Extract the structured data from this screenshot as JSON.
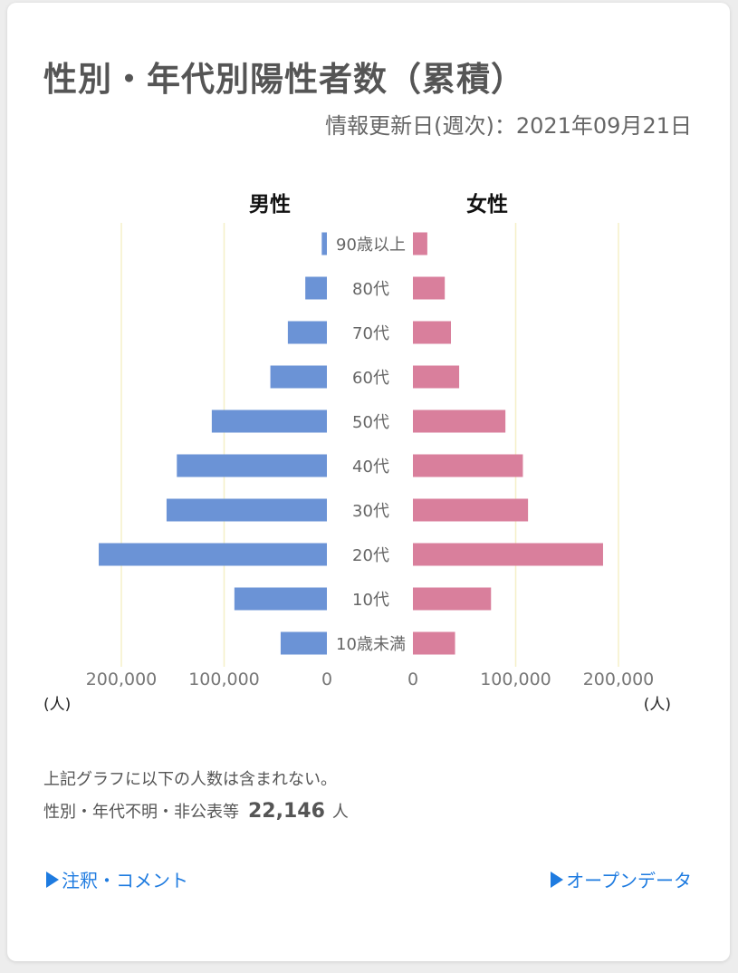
{
  "header": {
    "title": "性別・年代別陽性者数（累積）",
    "updated": "情報更新日(週次)：2021年09月21日"
  },
  "chart_data": {
    "type": "bar",
    "orientation": "horizontal-pyramid",
    "categories": [
      "90歳以上",
      "80代",
      "70代",
      "60代",
      "50代",
      "40代",
      "30代",
      "20代",
      "10代",
      "10歳未満"
    ],
    "series": [
      {
        "name": "男性",
        "side": "left",
        "color": "#6b93d6",
        "values": [
          5000,
          21000,
          38000,
          55000,
          112000,
          146000,
          156000,
          222000,
          90000,
          45000
        ]
      },
      {
        "name": "女性",
        "side": "right",
        "color": "#d97f9c",
        "values": [
          14000,
          31000,
          37000,
          45000,
          90000,
          107000,
          112000,
          185000,
          76000,
          41000
        ]
      }
    ],
    "xlim": [
      0,
      200000
    ],
    "ticks": [
      0,
      100000,
      200000
    ],
    "tick_labels_left": [
      "200,000",
      "100,000",
      "0"
    ],
    "tick_labels_right": [
      "0",
      "100,000",
      "200,000"
    ],
    "unit_left": "(人)",
    "unit_right": "(人)",
    "gridline_color": "#f5f0c8",
    "grid": true,
    "legend": "none"
  },
  "notes": {
    "line1": "上記グラフに以下の人数は含まれない。",
    "line2_label": "性別・年代不明・非公表等",
    "line2_value": "22,146",
    "line2_unit": "人"
  },
  "links": {
    "notes": "注釈・コメント",
    "open_data": "オープンデータ",
    "color": "#1e7be0"
  }
}
